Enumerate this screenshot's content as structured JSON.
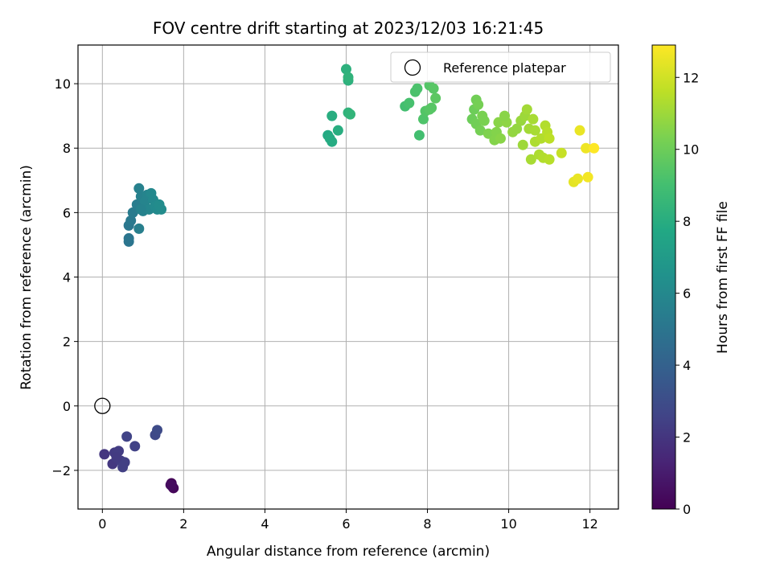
{
  "chart_data": {
    "type": "scatter",
    "title": "FOV centre drift starting at 2023/12/03 16:21:45",
    "xlabel": "Angular distance from reference (arcmin)",
    "ylabel": "Rotation from reference (arcmin)",
    "xlim": [
      -0.6,
      12.7
    ],
    "ylim": [
      -3.2,
      11.2
    ],
    "xticks": [
      0,
      2,
      4,
      6,
      8,
      10,
      12
    ],
    "yticks": [
      -2,
      0,
      2,
      4,
      6,
      8,
      10
    ],
    "xtick_labels": [
      "0",
      "2",
      "4",
      "6",
      "8",
      "10",
      "12"
    ],
    "ytick_labels": [
      "−2",
      "0",
      "2",
      "4",
      "6",
      "8",
      "10"
    ],
    "grid": true,
    "legend": {
      "placement": "top-right",
      "entries": [
        "Reference platepar"
      ]
    },
    "colorbar": {
      "label": "Hours from first FF file",
      "colormap": "viridis",
      "range": [
        0,
        12.9
      ],
      "ticks": [
        0,
        2,
        4,
        6,
        8,
        10,
        12
      ],
      "tick_labels": [
        "0",
        "2",
        "4",
        "6",
        "8",
        "10",
        "12"
      ]
    },
    "reference": {
      "name": "Reference platepar",
      "x": 0,
      "y": 0
    },
    "points": [
      {
        "x": 1.7,
        "y": -2.4,
        "t": 0.1
      },
      {
        "x": 1.75,
        "y": -2.55,
        "t": 0.2
      },
      {
        "x": 1.72,
        "y": -2.5,
        "t": 0.3
      },
      {
        "x": 1.68,
        "y": -2.45,
        "t": 0.4
      },
      {
        "x": 0.05,
        "y": -1.5,
        "t": 2.0
      },
      {
        "x": 0.25,
        "y": -1.8,
        "t": 2.1
      },
      {
        "x": 0.3,
        "y": -1.45,
        "t": 2.2
      },
      {
        "x": 0.4,
        "y": -1.4,
        "t": 2.3
      },
      {
        "x": 0.45,
        "y": -1.7,
        "t": 2.3
      },
      {
        "x": 0.5,
        "y": -1.9,
        "t": 2.4
      },
      {
        "x": 0.55,
        "y": -1.75,
        "t": 2.4
      },
      {
        "x": 0.6,
        "y": -0.95,
        "t": 2.6
      },
      {
        "x": 0.8,
        "y": -1.25,
        "t": 2.5
      },
      {
        "x": 1.3,
        "y": -0.9,
        "t": 2.8
      },
      {
        "x": 1.35,
        "y": -0.75,
        "t": 2.9
      },
      {
        "x": 0.35,
        "y": -1.6,
        "t": 2.2
      },
      {
        "x": 0.65,
        "y": 5.1,
        "t": 5.0
      },
      {
        "x": 0.65,
        "y": 5.2,
        "t": 5.0
      },
      {
        "x": 0.65,
        "y": 5.6,
        "t": 5.1
      },
      {
        "x": 0.7,
        "y": 5.75,
        "t": 5.2
      },
      {
        "x": 0.75,
        "y": 6.0,
        "t": 5.3
      },
      {
        "x": 0.85,
        "y": 6.25,
        "t": 5.4
      },
      {
        "x": 0.9,
        "y": 6.75,
        "t": 5.6
      },
      {
        "x": 0.9,
        "y": 5.5,
        "t": 5.5
      },
      {
        "x": 0.95,
        "y": 6.5,
        "t": 5.6
      },
      {
        "x": 1.0,
        "y": 6.05,
        "t": 5.7
      },
      {
        "x": 1.05,
        "y": 6.35,
        "t": 5.8
      },
      {
        "x": 1.1,
        "y": 6.55,
        "t": 5.8
      },
      {
        "x": 1.15,
        "y": 6.1,
        "t": 5.9
      },
      {
        "x": 1.2,
        "y": 6.6,
        "t": 6.0
      },
      {
        "x": 1.25,
        "y": 6.4,
        "t": 6.0
      },
      {
        "x": 1.3,
        "y": 6.2,
        "t": 6.1
      },
      {
        "x": 1.35,
        "y": 6.1,
        "t": 6.1
      },
      {
        "x": 1.4,
        "y": 6.25,
        "t": 6.2
      },
      {
        "x": 1.45,
        "y": 6.1,
        "t": 6.2
      },
      {
        "x": 0.95,
        "y": 6.1,
        "t": 5.7
      },
      {
        "x": 5.55,
        "y": 8.4,
        "t": 7.8
      },
      {
        "x": 5.6,
        "y": 8.3,
        "t": 7.9
      },
      {
        "x": 5.65,
        "y": 8.2,
        "t": 7.9
      },
      {
        "x": 5.65,
        "y": 9.0,
        "t": 8.0
      },
      {
        "x": 5.8,
        "y": 8.55,
        "t": 8.0
      },
      {
        "x": 6.0,
        "y": 10.45,
        "t": 8.2
      },
      {
        "x": 6.05,
        "y": 10.1,
        "t": 8.2
      },
      {
        "x": 6.05,
        "y": 10.2,
        "t": 8.3
      },
      {
        "x": 6.05,
        "y": 9.1,
        "t": 8.3
      },
      {
        "x": 6.1,
        "y": 9.05,
        "t": 8.4
      },
      {
        "x": 7.45,
        "y": 9.3,
        "t": 9.0
      },
      {
        "x": 7.55,
        "y": 9.4,
        "t": 9.1
      },
      {
        "x": 7.7,
        "y": 9.75,
        "t": 9.2
      },
      {
        "x": 7.75,
        "y": 9.85,
        "t": 9.2
      },
      {
        "x": 7.8,
        "y": 8.4,
        "t": 9.0
      },
      {
        "x": 7.9,
        "y": 8.9,
        "t": 9.3
      },
      {
        "x": 7.95,
        "y": 9.15,
        "t": 9.4
      },
      {
        "x": 8.05,
        "y": 9.95,
        "t": 9.4
      },
      {
        "x": 8.1,
        "y": 9.25,
        "t": 9.5
      },
      {
        "x": 8.15,
        "y": 9.85,
        "t": 9.5
      },
      {
        "x": 8.2,
        "y": 9.55,
        "t": 9.6
      },
      {
        "x": 8.05,
        "y": 9.2,
        "t": 9.5
      },
      {
        "x": 9.1,
        "y": 8.9,
        "t": 10.0
      },
      {
        "x": 9.15,
        "y": 9.2,
        "t": 10.0
      },
      {
        "x": 9.2,
        "y": 8.75,
        "t": 10.1
      },
      {
        "x": 9.2,
        "y": 9.5,
        "t": 10.1
      },
      {
        "x": 9.25,
        "y": 9.35,
        "t": 10.2
      },
      {
        "x": 9.3,
        "y": 8.55,
        "t": 10.2
      },
      {
        "x": 9.35,
        "y": 9.0,
        "t": 10.3
      },
      {
        "x": 9.4,
        "y": 8.85,
        "t": 10.3
      },
      {
        "x": 9.5,
        "y": 8.45,
        "t": 10.4
      },
      {
        "x": 9.65,
        "y": 8.25,
        "t": 10.5
      },
      {
        "x": 9.7,
        "y": 8.5,
        "t": 10.5
      },
      {
        "x": 9.75,
        "y": 8.8,
        "t": 10.6
      },
      {
        "x": 9.8,
        "y": 8.3,
        "t": 10.6
      },
      {
        "x": 9.95,
        "y": 8.8,
        "t": 10.7
      },
      {
        "x": 10.1,
        "y": 8.5,
        "t": 10.8
      },
      {
        "x": 10.2,
        "y": 8.6,
        "t": 10.8
      },
      {
        "x": 10.3,
        "y": 8.85,
        "t": 10.9
      },
      {
        "x": 10.35,
        "y": 8.1,
        "t": 11.0
      },
      {
        "x": 10.4,
        "y": 9.0,
        "t": 11.0
      },
      {
        "x": 10.45,
        "y": 9.2,
        "t": 11.1
      },
      {
        "x": 10.5,
        "y": 8.6,
        "t": 11.1
      },
      {
        "x": 10.55,
        "y": 7.65,
        "t": 11.2
      },
      {
        "x": 10.6,
        "y": 8.9,
        "t": 11.2
      },
      {
        "x": 10.65,
        "y": 8.2,
        "t": 11.3
      },
      {
        "x": 10.75,
        "y": 7.8,
        "t": 11.3
      },
      {
        "x": 10.8,
        "y": 8.3,
        "t": 11.4
      },
      {
        "x": 10.85,
        "y": 7.7,
        "t": 11.4
      },
      {
        "x": 10.9,
        "y": 8.7,
        "t": 11.4
      },
      {
        "x": 10.95,
        "y": 8.5,
        "t": 11.5
      },
      {
        "x": 11.0,
        "y": 7.65,
        "t": 11.5
      },
      {
        "x": 11.0,
        "y": 8.3,
        "t": 11.6
      },
      {
        "x": 11.3,
        "y": 7.85,
        "t": 11.8
      },
      {
        "x": 9.9,
        "y": 9.0,
        "t": 10.6
      },
      {
        "x": 10.65,
        "y": 8.55,
        "t": 11.2
      },
      {
        "x": 11.6,
        "y": 6.95,
        "t": 12.4
      },
      {
        "x": 11.7,
        "y": 7.05,
        "t": 12.5
      },
      {
        "x": 11.75,
        "y": 8.55,
        "t": 12.5
      },
      {
        "x": 11.9,
        "y": 8.0,
        "t": 12.6
      },
      {
        "x": 11.95,
        "y": 7.1,
        "t": 12.7
      },
      {
        "x": 12.1,
        "y": 8.0,
        "t": 12.9
      }
    ]
  }
}
